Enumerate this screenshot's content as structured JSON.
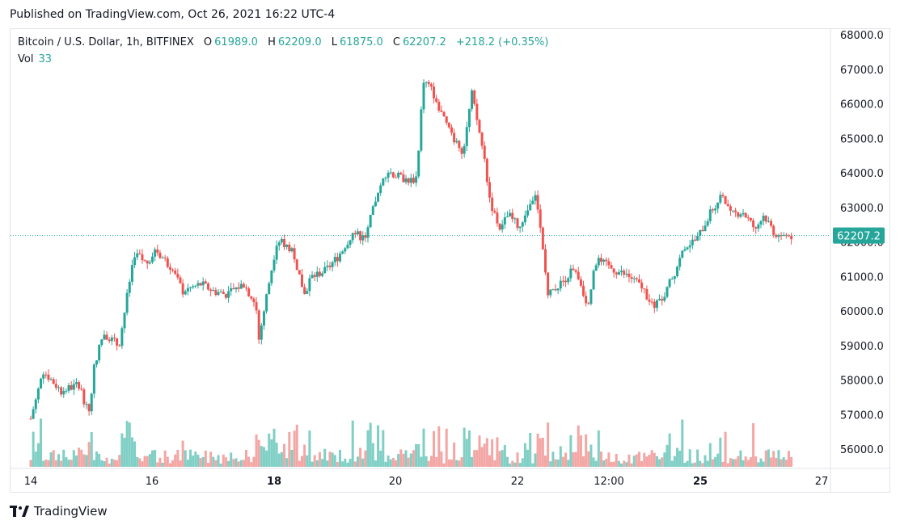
{
  "published": "Published on TradingView.com, Oct 26, 2021 16:22 UTC-4",
  "legend": {
    "symbol": "Bitcoin / U.S. Dollar, 1h, BITFINEX",
    "o_label": "O",
    "o_value": "61989.0",
    "h_label": "H",
    "h_value": "62209.0",
    "l_label": "L",
    "l_value": "61875.0",
    "c_label": "C",
    "c_value": "62207.2",
    "change": "+218.2 (+0.35%)"
  },
  "volume": {
    "label": "Vol",
    "value": "33"
  },
  "footer": {
    "brand": "TradingView"
  },
  "colors": {
    "up": "#26a69a",
    "down": "#ef5350",
    "vol_up": "#7fcfc5",
    "vol_down": "#f3a6a4"
  },
  "chart_data": {
    "type": "candlestick",
    "symbol": "Bitcoin / U.S. Dollar",
    "interval": "1h",
    "exchange": "BITFINEX",
    "y_axis_ticks": [
      "68000.0",
      "67000.0",
      "66000.0",
      "65000.0",
      "64000.0",
      "63000.0",
      "62000.0",
      "61000.0",
      "60000.0",
      "59000.0",
      "58000.0",
      "57000.0",
      "56000.0"
    ],
    "ylim": [
      55700,
      68200
    ],
    "x_axis_ticks": [
      "14",
      "16",
      "18",
      "20",
      "22",
      "12:00",
      "25",
      "27"
    ],
    "bold_ticks": [
      "18",
      "25"
    ],
    "last_price": 62207.2,
    "last_price_label": "62207.2",
    "grid": false,
    "price_path": [
      [
        "14",
        56900
      ],
      [
        "14.2",
        58300
      ],
      [
        "14.5",
        57700
      ],
      [
        "14.8",
        57900
      ],
      [
        "14.95",
        57000
      ],
      [
        "15.05",
        58500
      ],
      [
        "15.2",
        59400
      ],
      [
        "15.45",
        59000
      ],
      [
        "15.7",
        61700
      ],
      [
        "15.9",
        61400
      ],
      [
        "16.05",
        61800
      ],
      [
        "16.3",
        61300
      ],
      [
        "16.5",
        60600
      ],
      [
        "16.8",
        60800
      ],
      [
        "17.0",
        60600
      ],
      [
        "17.2",
        60500
      ],
      [
        "17.5",
        60800
      ],
      [
        "17.7",
        60200
      ],
      [
        "17.75",
        59200
      ],
      [
        "17.9",
        60700
      ],
      [
        "18.05",
        62100
      ],
      [
        "18.3",
        61800
      ],
      [
        "18.5",
        60500
      ],
      [
        "18.6",
        61000
      ],
      [
        "18.85",
        61200
      ],
      [
        "19.05",
        61600
      ],
      [
        "19.3",
        62300
      ],
      [
        "19.5",
        62100
      ],
      [
        "19.6",
        62800
      ],
      [
        "19.85",
        64100
      ],
      [
        "20.05",
        63900
      ],
      [
        "20.25",
        63800
      ],
      [
        "20.35",
        63900
      ],
      [
        "20.45",
        66700
      ],
      [
        "20.6",
        66400
      ],
      [
        "20.8",
        65500
      ],
      [
        "21.0",
        64900
      ],
      [
        "21.1",
        64600
      ],
      [
        "21.25",
        66300
      ],
      [
        "21.45",
        64500
      ],
      [
        "21.55",
        63200
      ],
      [
        "21.7",
        62400
      ],
      [
        "21.85",
        62800
      ],
      [
        "22.05",
        62400
      ],
      [
        "22.3",
        63500
      ],
      [
        "22.4",
        62000
      ],
      [
        "22.5",
        60500
      ],
      [
        "22.7",
        60800
      ],
      [
        "22.9",
        61200
      ],
      [
        "23.0",
        61000
      ],
      [
        "23.15",
        60200
      ],
      [
        "23.3",
        61500
      ],
      [
        "23.6",
        61200
      ],
      [
        "23.85",
        61000
      ],
      [
        "24.05",
        60700
      ],
      [
        "24.25",
        60100
      ],
      [
        "24.4",
        60500
      ],
      [
        "24.55",
        61000
      ],
      [
        "24.75",
        61900
      ],
      [
        "24.95",
        62100
      ],
      [
        "25.15",
        62800
      ],
      [
        "25.35",
        63400
      ],
      [
        "25.5",
        62800
      ],
      [
        "25.7",
        62900
      ],
      [
        "25.9",
        62400
      ],
      [
        "26.05",
        62800
      ],
      [
        "26.25",
        62200
      ],
      [
        "26.5",
        62200
      ]
    ]
  }
}
